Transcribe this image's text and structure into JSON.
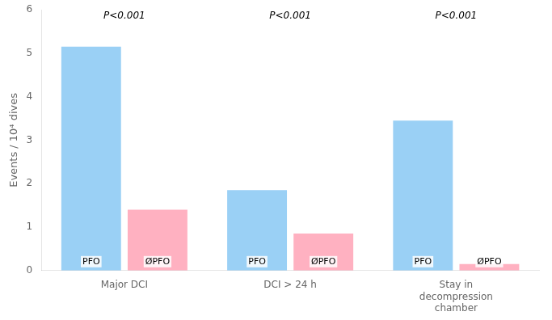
{
  "chart_data": {
    "type": "bar",
    "categories": [
      "Major DCI",
      "DCI > 24 h",
      "Stay in\ndecompression\nchamber"
    ],
    "series": [
      {
        "name": "PFO",
        "values": [
          5.15,
          1.85,
          3.45
        ]
      },
      {
        "name": "ØPFO",
        "values": [
          1.4,
          0.85,
          0.15
        ]
      }
    ],
    "ylabel": "Events / 10⁴ dives",
    "ylim": [
      0,
      6
    ],
    "yticks": [
      0,
      1,
      2,
      3,
      4,
      5,
      6
    ],
    "grid": false,
    "annotations": [
      {
        "category": "Major DCI",
        "text": "P<0.001"
      },
      {
        "category": "DCI > 24 h",
        "text": "P<0.001"
      },
      {
        "category": "Stay in\ndecompression\nchamber",
        "text": "P<0.001"
      }
    ]
  }
}
